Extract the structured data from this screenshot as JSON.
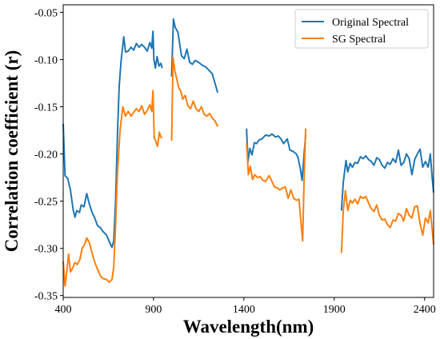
{
  "chart_data": {
    "type": "line",
    "xlabel": "Wavelength(nm)",
    "ylabel": "Correlation coefficient (r)",
    "xlim": [
      400,
      2450
    ],
    "ylim": [
      -0.352,
      -0.042
    ],
    "xticks": [
      400,
      900,
      1400,
      1900,
      2400
    ],
    "xtick_labels": [
      "400",
      "900",
      "1400",
      "1900",
      "2400"
    ],
    "yticks": [
      -0.35,
      -0.3,
      -0.25,
      -0.2,
      -0.15,
      -0.1,
      -0.05
    ],
    "ytick_labels": [
      "-0.35",
      "-0.30",
      "-0.25",
      "-0.20",
      "-0.15",
      "-0.10",
      "-0.05"
    ],
    "grid": false,
    "legend_position": "top-right",
    "series": [
      {
        "name": "Original Spectral",
        "color": "#1f77b4",
        "segments": [
          [
            [
              400,
              -0.168
            ],
            [
              410,
              -0.223
            ],
            [
              425,
              -0.226
            ],
            [
              440,
              -0.238
            ],
            [
              455,
              -0.259
            ],
            [
              465,
              -0.267
            ],
            [
              475,
              -0.26
            ],
            [
              490,
              -0.262
            ],
            [
              500,
              -0.254
            ],
            [
              515,
              -0.256
            ],
            [
              530,
              -0.242
            ],
            [
              545,
              -0.253
            ],
            [
              560,
              -0.262
            ],
            [
              575,
              -0.268
            ],
            [
              590,
              -0.276
            ],
            [
              605,
              -0.278
            ],
            [
              620,
              -0.282
            ],
            [
              640,
              -0.286
            ],
            [
              660,
              -0.295
            ],
            [
              670,
              -0.299
            ],
            [
              680,
              -0.292
            ],
            [
              690,
              -0.25
            ],
            [
              700,
              -0.18
            ],
            [
              710,
              -0.128
            ],
            [
              720,
              -0.102
            ],
            [
              735,
              -0.076
            ],
            [
              745,
              -0.092
            ],
            [
              760,
              -0.091
            ],
            [
              775,
              -0.087
            ],
            [
              790,
              -0.09
            ],
            [
              805,
              -0.083
            ],
            [
              820,
              -0.087
            ],
            [
              835,
              -0.084
            ],
            [
              850,
              -0.087
            ],
            [
              865,
              -0.091
            ],
            [
              880,
              -0.082
            ],
            [
              890,
              -0.088
            ],
            [
              897,
              -0.07
            ],
            [
              902,
              -0.1
            ],
            [
              910,
              -0.109
            ],
            [
              920,
              -0.097
            ],
            [
              930,
              -0.107
            ],
            [
              940,
              -0.104
            ],
            [
              948,
              -0.109
            ]
          ],
          [
            [
              1000,
              -0.118
            ],
            [
              1010,
              -0.057
            ],
            [
              1020,
              -0.066
            ],
            [
              1035,
              -0.071
            ],
            [
              1045,
              -0.084
            ],
            [
              1055,
              -0.096
            ],
            [
              1070,
              -0.099
            ],
            [
              1085,
              -0.089
            ],
            [
              1100,
              -0.103
            ],
            [
              1115,
              -0.105
            ],
            [
              1130,
              -0.101
            ],
            [
              1150,
              -0.103
            ],
            [
              1170,
              -0.106
            ],
            [
              1190,
              -0.108
            ],
            [
              1210,
              -0.112
            ],
            [
              1225,
              -0.115
            ],
            [
              1240,
              -0.125
            ],
            [
              1255,
              -0.135
            ]
          ],
          [
            [
              1415,
              -0.173
            ],
            [
              1423,
              -0.208
            ],
            [
              1433,
              -0.194
            ],
            [
              1445,
              -0.201
            ],
            [
              1458,
              -0.188
            ],
            [
              1470,
              -0.189
            ],
            [
              1485,
              -0.185
            ],
            [
              1500,
              -0.184
            ],
            [
              1520,
              -0.18
            ],
            [
              1540,
              -0.181
            ],
            [
              1555,
              -0.179
            ],
            [
              1575,
              -0.182
            ],
            [
              1590,
              -0.181
            ],
            [
              1605,
              -0.184
            ],
            [
              1620,
              -0.189
            ],
            [
              1640,
              -0.184
            ],
            [
              1655,
              -0.196
            ],
            [
              1670,
              -0.197
            ],
            [
              1690,
              -0.2
            ],
            [
              1700,
              -0.204
            ],
            [
              1712,
              -0.215
            ],
            [
              1722,
              -0.228
            ],
            [
              1735,
              -0.196
            ],
            [
              1742,
              -0.18
            ]
          ],
          [
            [
              1940,
              -0.26
            ],
            [
              1950,
              -0.23
            ],
            [
              1965,
              -0.207
            ],
            [
              1975,
              -0.219
            ],
            [
              1988,
              -0.21
            ],
            [
              2000,
              -0.214
            ],
            [
              2015,
              -0.209
            ],
            [
              2030,
              -0.21
            ],
            [
              2045,
              -0.203
            ],
            [
              2060,
              -0.205
            ],
            [
              2075,
              -0.202
            ],
            [
              2090,
              -0.206
            ],
            [
              2105,
              -0.208
            ],
            [
              2120,
              -0.212
            ],
            [
              2135,
              -0.204
            ],
            [
              2150,
              -0.206
            ],
            [
              2165,
              -0.212
            ],
            [
              2180,
              -0.215
            ],
            [
              2195,
              -0.209
            ],
            [
              2210,
              -0.211
            ],
            [
              2225,
              -0.205
            ],
            [
              2240,
              -0.209
            ],
            [
              2255,
              -0.196
            ],
            [
              2270,
              -0.212
            ],
            [
              2285,
              -0.209
            ],
            [
              2300,
              -0.2
            ],
            [
              2315,
              -0.205
            ],
            [
              2330,
              -0.222
            ],
            [
              2345,
              -0.206
            ],
            [
              2360,
              -0.2
            ],
            [
              2375,
              -0.195
            ],
            [
              2390,
              -0.214
            ],
            [
              2405,
              -0.208
            ],
            [
              2420,
              -0.214
            ],
            [
              2432,
              -0.2
            ],
            [
              2442,
              -0.225
            ],
            [
              2450,
              -0.241
            ]
          ]
        ]
      },
      {
        "name": "SG Spectral",
        "color": "#ff7f0e",
        "segments": [
          [
            [
              400,
              -0.314
            ],
            [
              410,
              -0.34
            ],
            [
              420,
              -0.324
            ],
            [
              430,
              -0.306
            ],
            [
              440,
              -0.325
            ],
            [
              452,
              -0.321
            ],
            [
              465,
              -0.315
            ],
            [
              478,
              -0.317
            ],
            [
              492,
              -0.312
            ],
            [
              505,
              -0.3
            ],
            [
              518,
              -0.296
            ],
            [
              530,
              -0.289
            ],
            [
              545,
              -0.294
            ],
            [
              560,
              -0.305
            ],
            [
              575,
              -0.315
            ],
            [
              590,
              -0.322
            ],
            [
              605,
              -0.329
            ],
            [
              620,
              -0.332
            ],
            [
              640,
              -0.333
            ],
            [
              655,
              -0.336
            ],
            [
              670,
              -0.333
            ],
            [
              680,
              -0.32
            ],
            [
              690,
              -0.275
            ],
            [
              700,
              -0.22
            ],
            [
              715,
              -0.175
            ],
            [
              730,
              -0.15
            ],
            [
              745,
              -0.16
            ],
            [
              760,
              -0.155
            ],
            [
              775,
              -0.16
            ],
            [
              790,
              -0.156
            ],
            [
              805,
              -0.152
            ],
            [
              820,
              -0.155
            ],
            [
              835,
              -0.149
            ],
            [
              850,
              -0.158
            ],
            [
              865,
              -0.154
            ],
            [
              880,
              -0.148
            ],
            [
              890,
              -0.155
            ],
            [
              897,
              -0.133
            ],
            [
              904,
              -0.183
            ],
            [
              912,
              -0.186
            ],
            [
              922,
              -0.192
            ],
            [
              932,
              -0.177
            ],
            [
              940,
              -0.182
            ],
            [
              948,
              -0.183
            ]
          ],
          [
            [
              1000,
              -0.186
            ],
            [
              1008,
              -0.098
            ],
            [
              1018,
              -0.112
            ],
            [
              1028,
              -0.12
            ],
            [
              1040,
              -0.13
            ],
            [
              1050,
              -0.133
            ],
            [
              1062,
              -0.142
            ],
            [
              1075,
              -0.138
            ],
            [
              1090,
              -0.149
            ],
            [
              1105,
              -0.152
            ],
            [
              1120,
              -0.144
            ],
            [
              1135,
              -0.152
            ],
            [
              1150,
              -0.155
            ],
            [
              1165,
              -0.15
            ],
            [
              1180,
              -0.158
            ],
            [
              1195,
              -0.16
            ],
            [
              1210,
              -0.157
            ],
            [
              1225,
              -0.162
            ],
            [
              1240,
              -0.165
            ],
            [
              1255,
              -0.171
            ]
          ],
          [
            [
              1415,
              -0.188
            ],
            [
              1425,
              -0.222
            ],
            [
              1435,
              -0.213
            ],
            [
              1448,
              -0.227
            ],
            [
              1460,
              -0.222
            ],
            [
              1475,
              -0.225
            ],
            [
              1490,
              -0.224
            ],
            [
              1505,
              -0.228
            ],
            [
              1520,
              -0.229
            ],
            [
              1540,
              -0.223
            ],
            [
              1555,
              -0.229
            ],
            [
              1570,
              -0.235
            ],
            [
              1585,
              -0.236
            ],
            [
              1600,
              -0.238
            ],
            [
              1615,
              -0.236
            ],
            [
              1630,
              -0.235
            ],
            [
              1645,
              -0.247
            ],
            [
              1660,
              -0.238
            ],
            [
              1675,
              -0.247
            ],
            [
              1690,
              -0.249
            ],
            [
              1705,
              -0.248
            ],
            [
              1715,
              -0.27
            ],
            [
              1725,
              -0.292
            ],
            [
              1735,
              -0.214
            ],
            [
              1742,
              -0.173
            ]
          ],
          [
            [
              1940,
              -0.305
            ],
            [
              1950,
              -0.26
            ],
            [
              1962,
              -0.239
            ],
            [
              1975,
              -0.26
            ],
            [
              1988,
              -0.249
            ],
            [
              2000,
              -0.252
            ],
            [
              2015,
              -0.248
            ],
            [
              2030,
              -0.253
            ],
            [
              2045,
              -0.245
            ],
            [
              2060,
              -0.247
            ],
            [
              2075,
              -0.245
            ],
            [
              2090,
              -0.252
            ],
            [
              2105,
              -0.258
            ],
            [
              2120,
              -0.261
            ],
            [
              2135,
              -0.254
            ],
            [
              2150,
              -0.265
            ],
            [
              2165,
              -0.27
            ],
            [
              2180,
              -0.269
            ],
            [
              2195,
              -0.275
            ],
            [
              2210,
              -0.278
            ],
            [
              2225,
              -0.27
            ],
            [
              2240,
              -0.271
            ],
            [
              2255,
              -0.263
            ],
            [
              2270,
              -0.265
            ],
            [
              2285,
              -0.271
            ],
            [
              2300,
              -0.258
            ],
            [
              2315,
              -0.265
            ],
            [
              2330,
              -0.268
            ],
            [
              2345,
              -0.256
            ],
            [
              2360,
              -0.255
            ],
            [
              2375,
              -0.274
            ],
            [
              2390,
              -0.286
            ],
            [
              2405,
              -0.268
            ],
            [
              2420,
              -0.273
            ],
            [
              2432,
              -0.26
            ],
            [
              2442,
              -0.28
            ],
            [
              2450,
              -0.296
            ]
          ]
        ]
      }
    ]
  }
}
